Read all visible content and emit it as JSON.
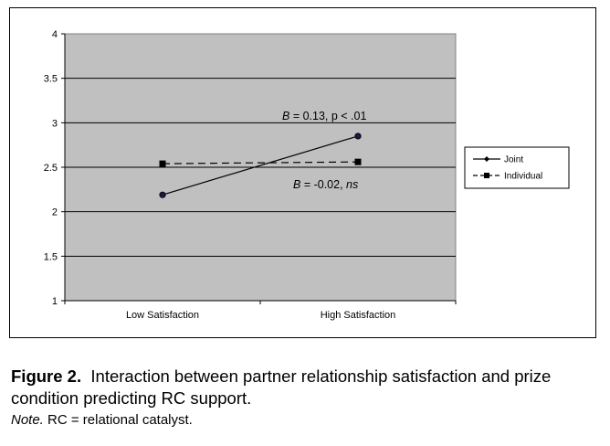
{
  "chart_data": {
    "type": "line",
    "categories": [
      "Low Satisfaction",
      "High Satisfaction"
    ],
    "series": [
      {
        "name": "Joint",
        "values": [
          2.19,
          2.85
        ],
        "color": "#000000",
        "marker": "diamond",
        "dash": "solid"
      },
      {
        "name": "Individual",
        "values": [
          2.54,
          2.56
        ],
        "color": "#000000",
        "marker": "square",
        "dash": "dashed"
      }
    ],
    "ylim": [
      1,
      4
    ],
    "yticks": [
      "1",
      "1.5",
      "2",
      "2.5",
      "3",
      "3.5",
      "4"
    ],
    "grid": true,
    "plot_background": "#c0c0c0",
    "legend_position": "right",
    "annotations": [
      {
        "prefix": "B",
        "text": " = 0.13, p < .01",
        "suffix": ""
      },
      {
        "prefix": "B",
        "text": " = -0.02, ",
        "suffix": "ns"
      }
    ]
  },
  "caption": {
    "label": "Figure 2.",
    "text": "Interaction between partner relationship satisfaction and prize condition predicting RC support.",
    "note_label": "Note.",
    "note_text": " RC = relational catalyst."
  }
}
